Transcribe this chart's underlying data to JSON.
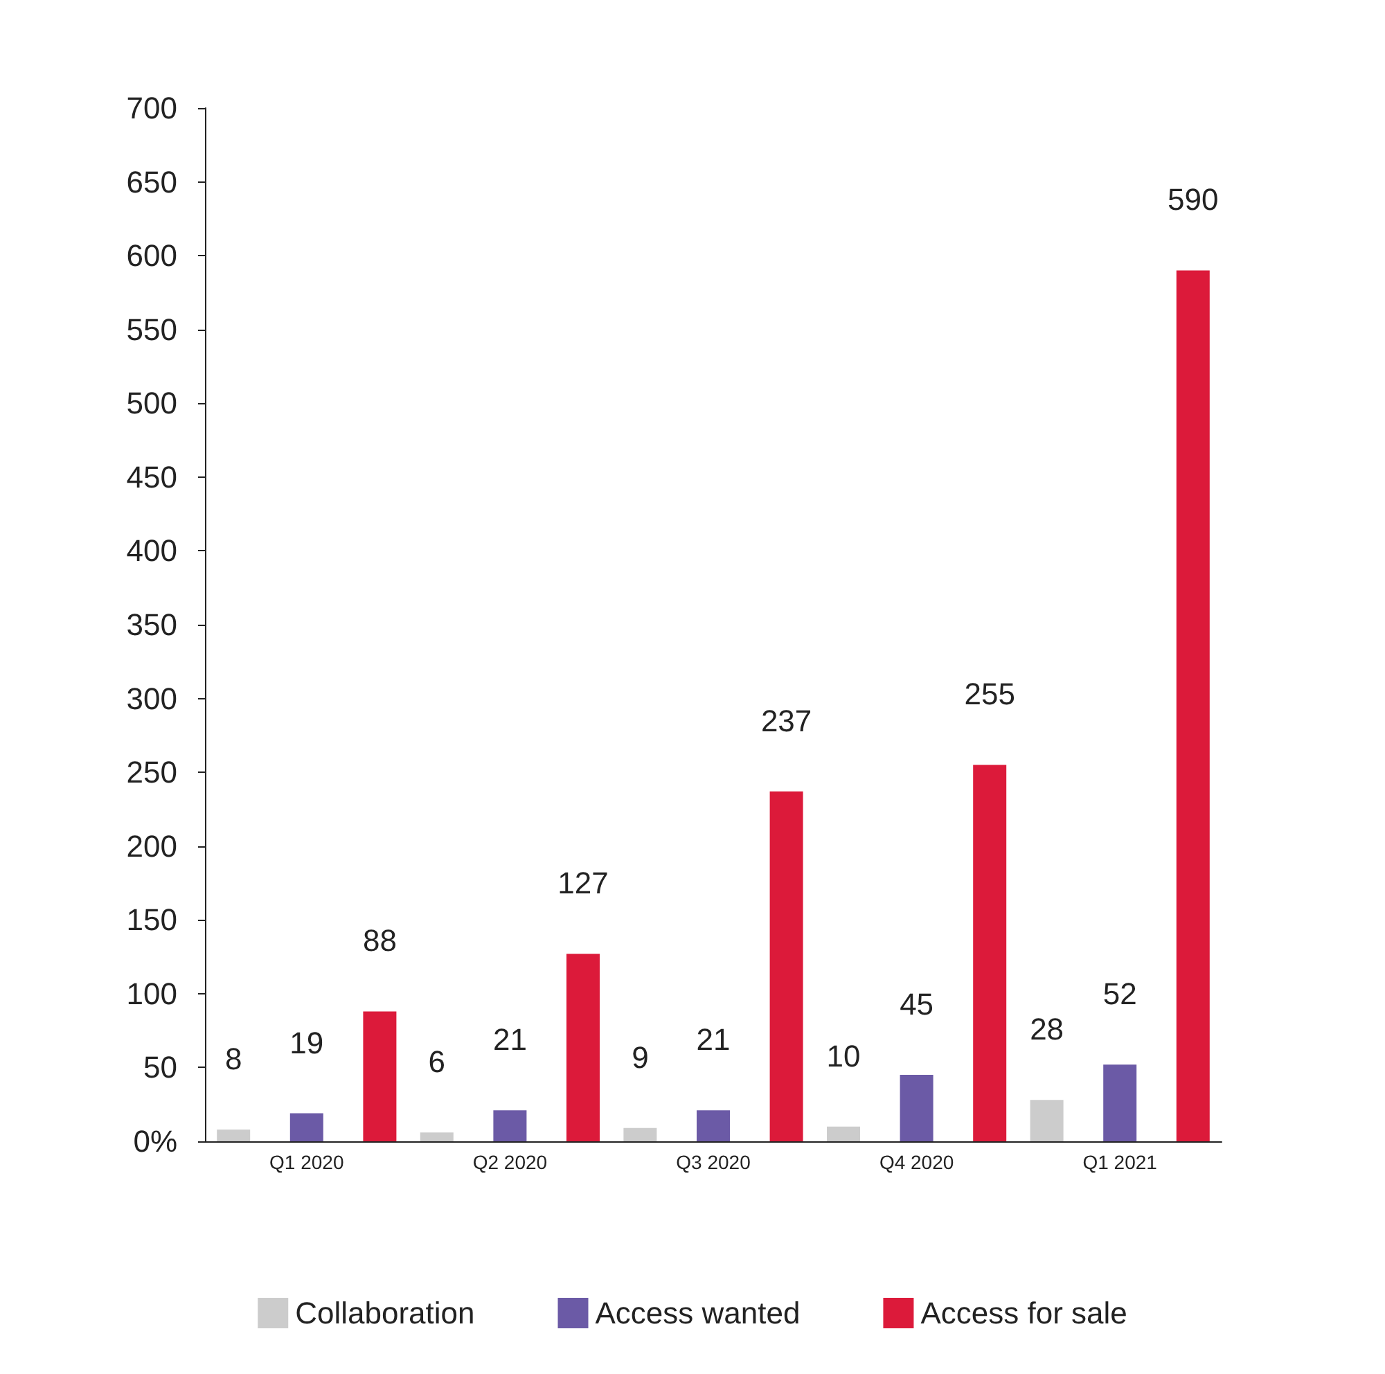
{
  "chart_data": {
    "type": "bar",
    "categories": [
      "Q1 2020",
      "Q2 2020",
      "Q3 2020",
      "Q4 2020",
      "Q1 2021"
    ],
    "series": [
      {
        "name": "Collaboration",
        "color": "#cccccc",
        "values": [
          8,
          6,
          9,
          10,
          28
        ]
      },
      {
        "name": "Access wanted",
        "color": "#6b5aa6",
        "values": [
          19,
          21,
          21,
          45,
          52
        ]
      },
      {
        "name": "Access for sale",
        "color": "#dc1a3a",
        "values": [
          88,
          127,
          237,
          255,
          590
        ]
      }
    ],
    "ylim": [
      0,
      700
    ],
    "yticks": [
      {
        "value": 0,
        "label": "0%"
      },
      50,
      100,
      150,
      200,
      250,
      300,
      350,
      400,
      450,
      500,
      550,
      600,
      650,
      700
    ],
    "data_labels": true,
    "grid": false,
    "legend": "bottom"
  }
}
